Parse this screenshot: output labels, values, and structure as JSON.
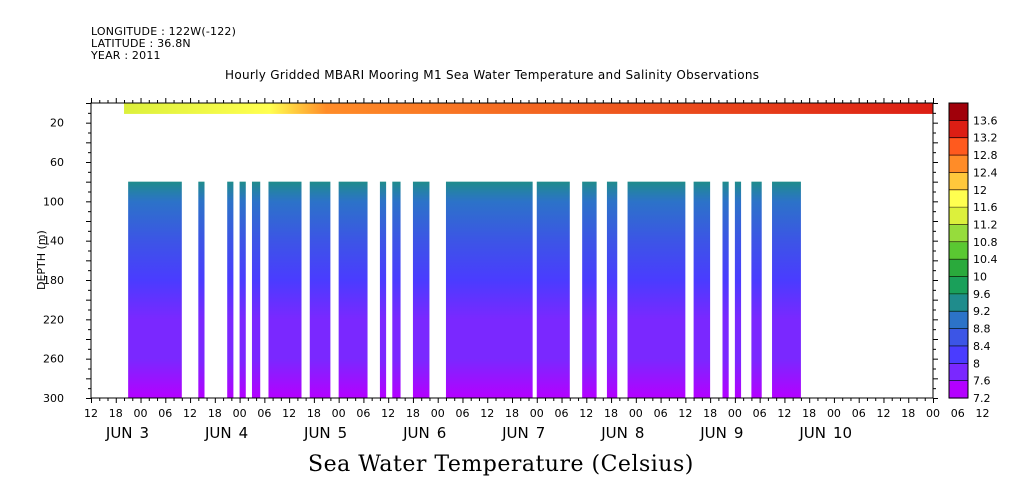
{
  "header": {
    "longitude": "LONGITUDE : 122W(-122)",
    "latitude": "LATITUDE : 36.8N",
    "year": "YEAR : 2011"
  },
  "chart_data": {
    "type": "heatmap",
    "title": "Hourly Gridded MBARI Mooring M1 Sea Water Temperature and Salinity Observations",
    "xlabel": "",
    "ylabel": "DEPTH (m)",
    "colorbar_label": "Sea Water Temperature (Celsius)",
    "x_unit": "hours since 2011-06-02 12:00",
    "xlim": [
      0,
      204
    ],
    "ylim": [
      300,
      0
    ],
    "y_ticks": [
      20,
      60,
      100,
      140,
      180,
      220,
      260,
      300
    ],
    "x_hour_ticks": [
      "12",
      "18",
      "00",
      "06",
      "12",
      "18",
      "00",
      "06",
      "12",
      "18",
      "00",
      "06",
      "12",
      "18",
      "00",
      "06",
      "12",
      "18",
      "00",
      "06",
      "12",
      "18",
      "00",
      "06",
      "12",
      "18",
      "00",
      "06",
      "12",
      "18",
      "00",
      "06",
      "12",
      "18",
      "00",
      "06",
      "12"
    ],
    "day_labels": [
      {
        "label": "JUN",
        "num": "3",
        "at_hour": 12
      },
      {
        "label": "JUN",
        "num": "4",
        "at_hour": 36
      },
      {
        "label": "JUN",
        "num": "5",
        "at_hour": 60
      },
      {
        "label": "JUN",
        "num": "6",
        "at_hour": 84
      },
      {
        "label": "JUN",
        "num": "7",
        "at_hour": 108
      },
      {
        "label": "JUN",
        "num": "8",
        "at_hour": 132
      },
      {
        "label": "JUN",
        "num": "9",
        "at_hour": 156
      },
      {
        "label": "JUN",
        "num": "10",
        "at_hour": 180
      }
    ],
    "colorbar_levels": [
      "7.2",
      "7.6",
      "8",
      "8.4",
      "8.8",
      "9.2",
      "9.6",
      "10",
      "10.4",
      "10.8",
      "11.2",
      "11.6",
      "12",
      "12.4",
      "12.8",
      "13.2",
      "13.6"
    ],
    "colorbar_colors": [
      "#b400ff",
      "#7a28ff",
      "#4a3cff",
      "#3c55e6",
      "#2c73c8",
      "#1f8c8c",
      "#1aa05a",
      "#2aaa3c",
      "#5ac832",
      "#96dc3c",
      "#dcf03c",
      "#ffff50",
      "#ffc83c",
      "#ff8c28",
      "#ff5a1e",
      "#dc1e14",
      "#a0000a"
    ],
    "surface_depth_range": [
      0,
      5
    ],
    "surface_start_hour": 8,
    "surface_temperature_range": [
      11.2,
      13.4
    ],
    "deep_depth_range": [
      80,
      300
    ],
    "deep_temperature_profile": [
      {
        "depth": 80,
        "temp": 9.2
      },
      {
        "depth": 100,
        "temp": 8.8
      },
      {
        "depth": 140,
        "temp": 8.4
      },
      {
        "depth": 180,
        "temp": 8.0
      },
      {
        "depth": 220,
        "temp": 7.9
      },
      {
        "depth": 260,
        "temp": 7.8
      },
      {
        "depth": 300,
        "temp": 7.5
      }
    ],
    "deep_data_segments": [
      [
        9,
        22
      ],
      [
        26,
        27.5
      ],
      [
        33,
        34.5
      ],
      [
        36,
        37.5
      ],
      [
        39,
        41
      ],
      [
        43,
        51
      ],
      [
        53,
        58
      ],
      [
        60,
        67
      ],
      [
        70,
        71.5
      ],
      [
        73,
        75
      ],
      [
        78,
        82
      ],
      [
        86,
        107
      ],
      [
        108,
        116
      ],
      [
        119,
        122.5
      ],
      [
        125,
        127.5
      ],
      [
        130,
        144
      ],
      [
        146,
        150
      ],
      [
        153,
        154.5
      ],
      [
        156,
        157.5
      ],
      [
        160,
        162.5
      ],
      [
        165,
        172
      ]
    ]
  }
}
